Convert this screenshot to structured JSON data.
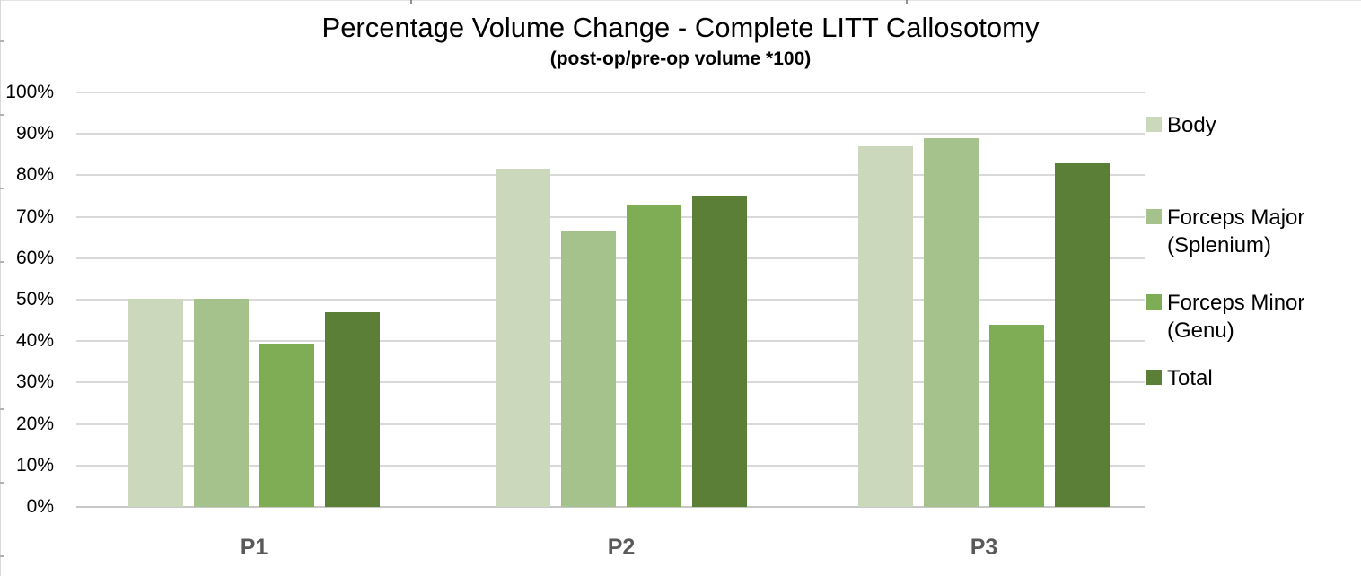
{
  "title": "Percentage Volume Change - Complete LITT Callosotomy",
  "subtitle": "(post-op/pre-op volume *100)",
  "y_axis": {
    "tick_labels": [
      "100%",
      "90%",
      "80%",
      "70%",
      "60%",
      "50%",
      "40%",
      "30%",
      "20%",
      "10%",
      "0%"
    ]
  },
  "x_axis": {
    "categories": [
      "P1",
      "P2",
      "P3"
    ]
  },
  "legend": {
    "position": "right",
    "items": [
      {
        "label": "Body",
        "color": "#cbd8bc"
      },
      {
        "label": "Forceps Major (Splenium)",
        "color": "#a5c18c"
      },
      {
        "label": "Forceps Minor (Genu)",
        "color": "#7ead55"
      },
      {
        "label": "Total",
        "color": "#5b7f37"
      }
    ]
  },
  "chart_data": {
    "type": "bar",
    "title": "Percentage Volume Change - Complete LITT Callosotomy",
    "subtitle": "(post-op/pre-op volume *100)",
    "xlabel": "",
    "ylabel": "",
    "categories": [
      "P1",
      "P2",
      "P3"
    ],
    "series": [
      {
        "name": "Body",
        "color": "#cbd8bc",
        "values": [
          50.2,
          81.7,
          87.0
        ]
      },
      {
        "name": "Forceps Major (Splenium)",
        "color": "#a5c18c",
        "values": [
          50.3,
          66.5,
          89.0
        ]
      },
      {
        "name": "Forceps Minor (Genu)",
        "color": "#7ead55",
        "values": [
          39.5,
          72.7,
          44.0
        ]
      },
      {
        "name": "Total",
        "color": "#5b7f37",
        "values": [
          47.0,
          75.0,
          83.0
        ]
      }
    ],
    "ylim": [
      0,
      100
    ],
    "y_tick_step": 10,
    "y_tick_format": "percent",
    "grid": true,
    "legend_position": "right"
  }
}
